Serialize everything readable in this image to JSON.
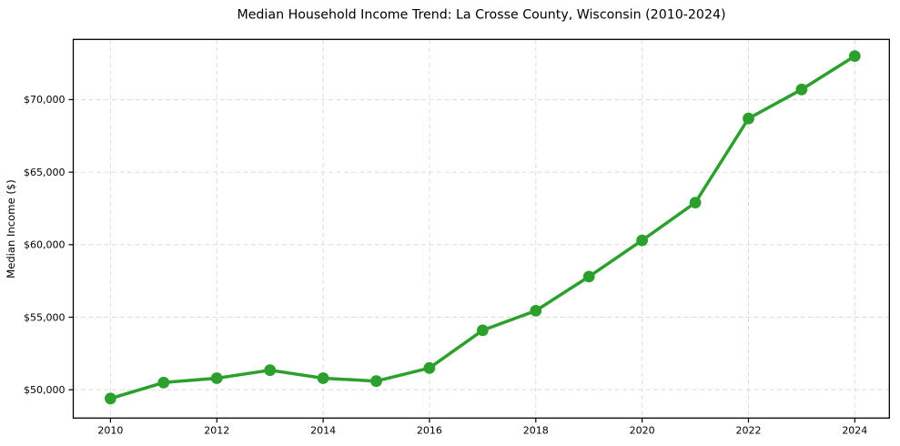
{
  "chart_data": {
    "type": "line",
    "title": "Median Household Income Trend: La Crosse County, Wisconsin (2010-2024)",
    "xlabel": "",
    "ylabel": "Median Income ($)",
    "series": [
      {
        "name": "Median household income",
        "x": [
          2010,
          2011,
          2012,
          2013,
          2014,
          2015,
          2016,
          2017,
          2018,
          2019,
          2020,
          2021,
          2022,
          2023,
          2024
        ],
        "values": [
          49400,
          50500,
          50800,
          51350,
          50800,
          50600,
          51500,
          54100,
          55450,
          57800,
          60300,
          62900,
          68700,
          70700,
          73000
        ]
      }
    ],
    "xticks": [
      2010,
      2012,
      2014,
      2016,
      2018,
      2020,
      2022,
      2024
    ],
    "xtick_labels": [
      "2010",
      "2012",
      "2014",
      "2016",
      "2018",
      "2020",
      "2022",
      "2024"
    ],
    "yticks": [
      50000,
      55000,
      60000,
      65000,
      70000
    ],
    "ytick_labels": [
      "$50,000",
      "$55,000",
      "$60,000",
      "$65,000",
      "$70,000"
    ],
    "xlim": [
      2009.3,
      2024.65
    ],
    "ylim": [
      48050,
      74150
    ],
    "grid": true,
    "grid_style": "dashed",
    "legend": false,
    "marker": "circle",
    "colors": {
      "line": "#2ca02c",
      "marker": "#2ca02c",
      "grid": "#dcdcdc",
      "frame": "#000000",
      "text": "#000000",
      "background": "#ffffff"
    }
  }
}
